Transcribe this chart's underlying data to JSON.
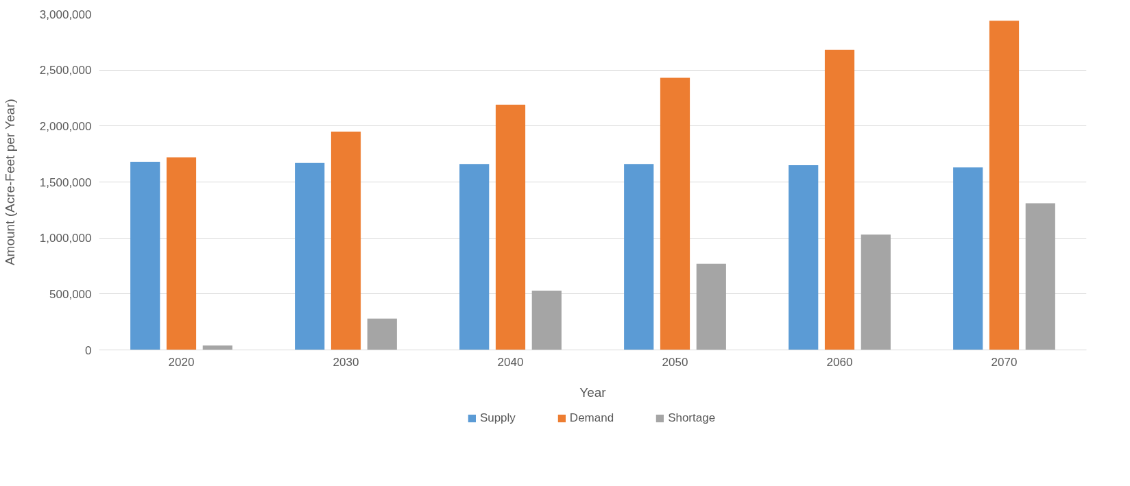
{
  "chart_data": {
    "type": "bar",
    "xlabel": "Year",
    "ylabel": "Amount (Acre-Feet per Year)",
    "categories": [
      "2020",
      "2030",
      "2040",
      "2050",
      "2060",
      "2070"
    ],
    "series": [
      {
        "name": "Supply",
        "color": "#5b9bd5",
        "values": [
          1680000,
          1670000,
          1660000,
          1660000,
          1650000,
          1630000
        ]
      },
      {
        "name": "Demand",
        "color": "#ed7d31",
        "values": [
          1720000,
          1950000,
          2190000,
          2430000,
          2680000,
          2940000
        ]
      },
      {
        "name": "Shortage",
        "color": "#a5a5a5",
        "values": [
          40000,
          280000,
          530000,
          770000,
          1030000,
          1310000
        ]
      }
    ],
    "ylim": [
      0,
      3000000
    ],
    "yticks": [
      0,
      {
        "value": 500000,
        "label": "500,000"
      },
      {
        "value": 1000000,
        "label": "1,000,000"
      },
      {
        "value": 1500000,
        "label": "1,500,000"
      },
      {
        "value": 2000000,
        "label": "2,000,000"
      },
      {
        "value": 2500000,
        "label": "2,500,000"
      },
      {
        "value": 3000000,
        "label": "3,000,000"
      }
    ],
    "grid": "y",
    "legend": "bottom"
  }
}
